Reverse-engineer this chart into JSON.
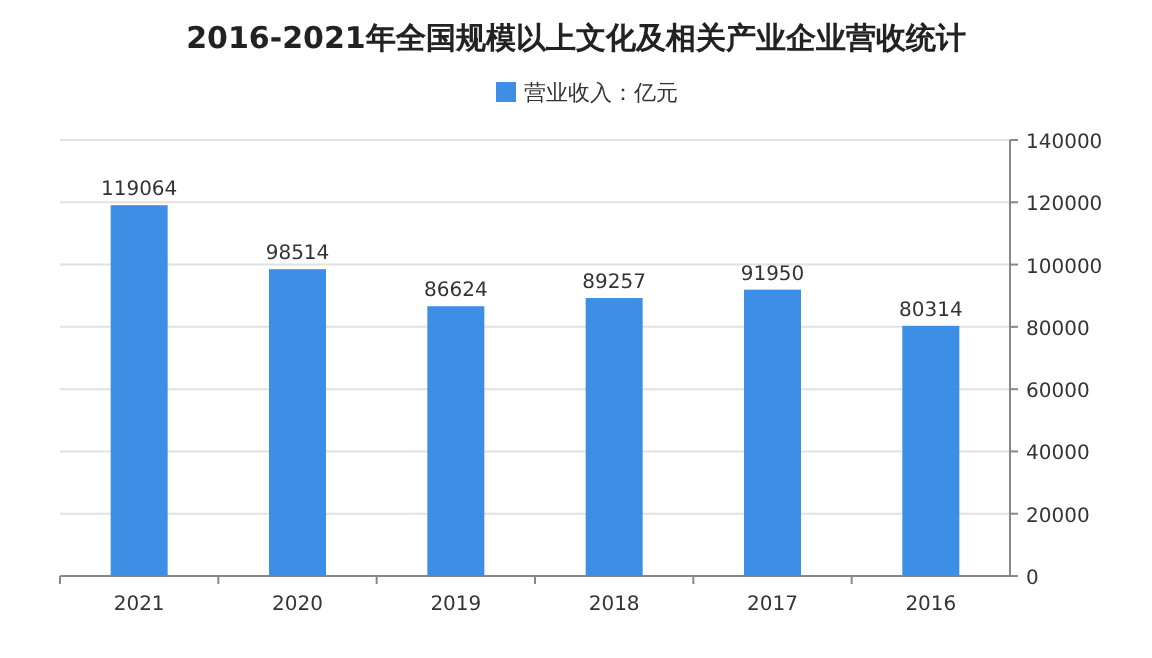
{
  "chart_data": {
    "type": "bar",
    "title": "2016-2021年全国规模以上文化及相关产业企业营收统计",
    "categories": [
      "2021",
      "2020",
      "2019",
      "2018",
      "2017",
      "2016"
    ],
    "series": [
      {
        "name": "营业收入：亿元",
        "color": "#3d8fe5",
        "values": [
          119064,
          98514,
          86624,
          89257,
          91950,
          80314
        ]
      }
    ],
    "ylim": [
      0,
      140000
    ],
    "yticks": [
      0,
      20000,
      40000,
      60000,
      80000,
      100000,
      120000,
      140000
    ],
    "data_labels": true,
    "grid": "y",
    "legend": "top"
  }
}
